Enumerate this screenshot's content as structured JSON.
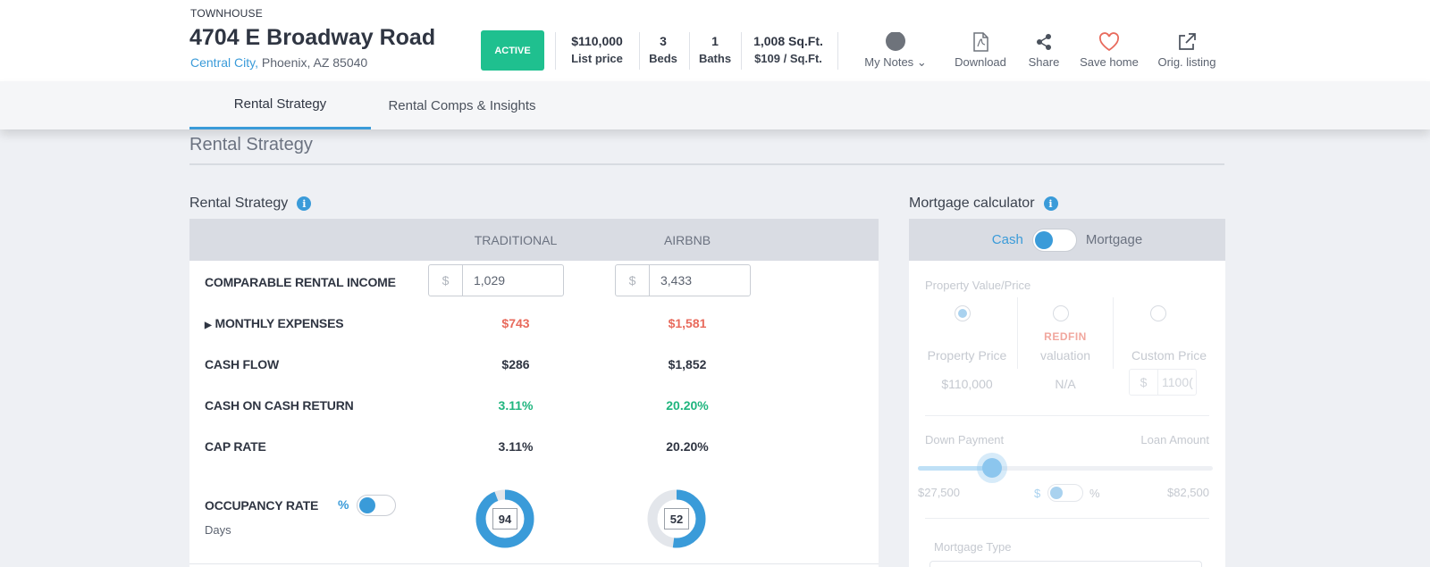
{
  "property": {
    "type": "TOWNHOUSE",
    "address": "4704 E Broadway Road",
    "city": "Central City,",
    "rest_location": "Phoenix, AZ 85040",
    "status": "ACTIVE",
    "stats": [
      {
        "value": "$110,000",
        "label": "List price"
      },
      {
        "value": "3",
        "label": "Beds"
      },
      {
        "value": "1",
        "label": "Baths"
      },
      {
        "value": "1,008 Sq.Ft.",
        "label": "$109 / Sq.Ft."
      }
    ]
  },
  "actions": [
    {
      "label": "My Notes",
      "icon": "notes-dot-icon"
    },
    {
      "label": "Download",
      "icon": "pdf-icon"
    },
    {
      "label": "Share",
      "icon": "share-icon"
    },
    {
      "label": "Save home",
      "icon": "heart-icon"
    },
    {
      "label": "Orig. listing",
      "icon": "external-link-icon"
    }
  ],
  "tabs": [
    {
      "label": "Rental Strategy",
      "active": true
    },
    {
      "label": "Rental Comps & Insights",
      "active": false
    }
  ],
  "section_title": "Rental Strategy",
  "rental": {
    "panel_label": "Rental Strategy",
    "columns": [
      "TRADITIONAL",
      "AIRBNB"
    ],
    "rows": {
      "income": {
        "label": "COMPARABLE RENTAL INCOME",
        "currency": "$",
        "traditional": "1,029",
        "airbnb": "3,433"
      },
      "expenses": {
        "label": "MONTHLY EXPENSES",
        "traditional": "$743",
        "airbnb": "$1,581"
      },
      "cash_flow": {
        "label": "CASH FLOW",
        "traditional": "$286",
        "airbnb": "$1,852"
      },
      "coc": {
        "label": "CASH ON CASH RETURN",
        "traditional": "3.11%",
        "airbnb": "20.20%"
      },
      "cap": {
        "label": "CAP RATE",
        "traditional": "3.11%",
        "airbnb": "20.20%"
      },
      "occupancy": {
        "label": "OCCUPANCY RATE",
        "unit_pct": "%",
        "unit_days": "Days",
        "traditional": "94",
        "airbnb": "52",
        "traditional_fraction": 0.94,
        "airbnb_fraction": 0.52
      }
    }
  },
  "mortgage": {
    "panel_label": "Mortgage calculator",
    "toggle_left": "Cash",
    "toggle_right": "Mortgage",
    "value_label": "Property Value/Price",
    "options": [
      {
        "line1": "Property Price",
        "value": "$110,000"
      },
      {
        "brand": "REDFIN",
        "line1": "valuation",
        "value": "N/A"
      },
      {
        "line1": "Custom Price",
        "currency": "$",
        "value": "1100("
      }
    ],
    "down_payment_label": "Down Payment",
    "loan_amount_label": "Loan Amount",
    "down_payment_value": "$27,500",
    "loan_amount_value": "$82,500",
    "unit_dollar": "$",
    "unit_pct": "%",
    "down_payment_fraction": 0.25,
    "mortgage_type_label": "Mortgage Type"
  },
  "colors": {
    "accent": "#3a9bd9",
    "active": "#1fc08f",
    "negative": "#e86a5c",
    "positive": "#1fb57e"
  }
}
